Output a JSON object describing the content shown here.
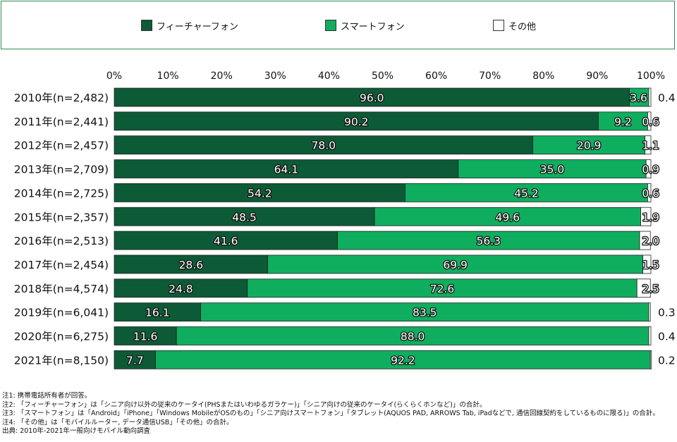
{
  "legend": {
    "items": [
      {
        "label": "フィーチャーフォン",
        "color": "#0d5a36"
      },
      {
        "label": "スマートフォン",
        "color": "#0fae5e"
      },
      {
        "label": "その他",
        "color": "#ffffff"
      }
    ]
  },
  "chart_data": {
    "type": "bar",
    "orientation": "horizontal-stacked-100",
    "categories": [
      "2010年(n=2,482)",
      "2011年(n=2,441)",
      "2012年(n=2,457)",
      "2013年(n=2,709)",
      "2014年(n=2,725)",
      "2015年(n=2,357)",
      "2016年(n=2,513)",
      "2017年(n=2,454)",
      "2018年(n=4,574)",
      "2019年(n=6,041)",
      "2020年(n=6,275)",
      "2021年(n=8,150)"
    ],
    "series": [
      {
        "name": "フィーチャーフォン",
        "color": "#0d5a36",
        "values": [
          96.0,
          90.2,
          78.0,
          64.1,
          54.2,
          48.5,
          41.6,
          28.6,
          24.8,
          16.1,
          11.6,
          7.7
        ]
      },
      {
        "name": "スマートフォン",
        "color": "#0fae5e",
        "values": [
          3.6,
          9.2,
          20.9,
          35.0,
          45.2,
          49.6,
          56.3,
          69.9,
          72.6,
          83.5,
          88.0,
          92.2
        ]
      },
      {
        "name": "その他",
        "color": "#ffffff",
        "values": [
          0.4,
          0.6,
          1.1,
          0.9,
          0.6,
          1.9,
          2.0,
          1.5,
          2.5,
          0.3,
          0.4,
          0.2
        ]
      }
    ],
    "x_ticks": [
      "0%",
      "10%",
      "20%",
      "30%",
      "40%",
      "50%",
      "60%",
      "70%",
      "80%",
      "90%",
      "100%"
    ],
    "xlim": [
      0,
      100
    ],
    "legend_position": "top",
    "grid": false
  },
  "notes": [
    "注1: 携帯電話所有者が回答。",
    "注2: 「フィーチャーフォン」は「シニア向け以外の従来のケータイ(PHSまたはいわゆるガラケー)」「シニア向けの従来のケータイ(らくらくホンなど)」の合計。",
    "注3: 「スマートフォン」は「Android」「iPhone」「Windows MobileがOSのもの」「シニア向けスマートフォン」「タブレット(AQUOS PAD, ARROWS Tab, iPadなどで, 通信回線契約をしているものに限る)」の合計。",
    "注4: 「その他」は「モバイルルーター, データ通信USB」「その他」の合計。",
    "出典: 2010年-2021年一般向けモバイル動向調査"
  ]
}
